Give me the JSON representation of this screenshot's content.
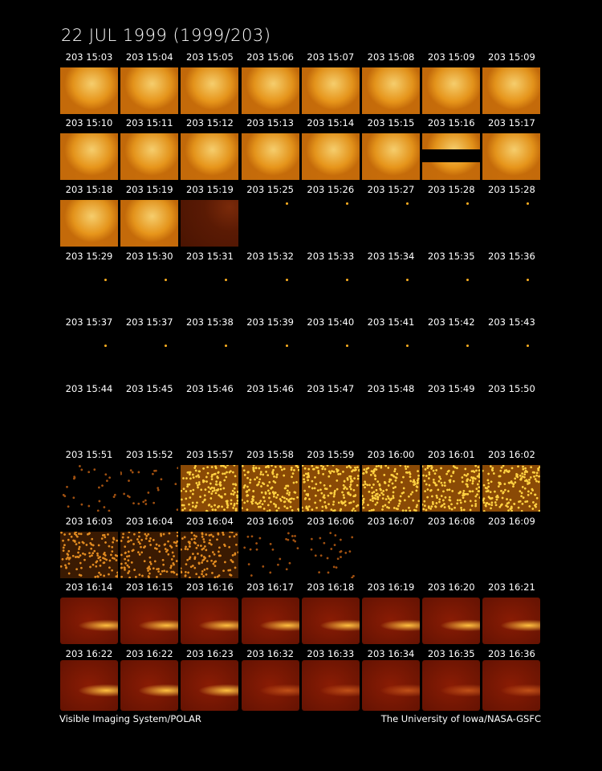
{
  "title": "22 JUL 1999  (1999/203)",
  "panels": [
    [
      "203 15:03",
      "203 15:04",
      "203 15:05",
      "203 15:06",
      "203 15:07",
      "203 15:08",
      "203 15:09",
      "203 15:09"
    ],
    [
      "203 15:10",
      "203 15:11",
      "203 15:12",
      "203 15:13",
      "203 15:14",
      "203 15:15",
      "203 15:16",
      "203 15:17"
    ],
    [
      "203 15:18",
      "203 15:19",
      "203 15:19",
      "203 15:25",
      "203 15:26",
      "203 15:27",
      "203 15:28",
      "203 15:28"
    ],
    [
      "203 15:29",
      "203 15:30",
      "203 15:31",
      "203 15:32",
      "203 15:33",
      "203 15:34",
      "203 15:35",
      "203 15:36"
    ],
    [
      "203 15:37",
      "203 15:37",
      "203 15:38",
      "203 15:39",
      "203 15:40",
      "203 15:41",
      "203 15:42",
      "203 15:43"
    ],
    [
      "203 15:44",
      "203 15:45",
      "203 15:46",
      "203 15:46",
      "203 15:47",
      "203 15:48",
      "203 15:49",
      "203 15:50"
    ],
    [
      "203 15:51",
      "203 15:52",
      "203 15:57",
      "203 15:58",
      "203 15:59",
      "203 16:00",
      "203 16:01",
      "203 16:02"
    ],
    [
      "203 16:03",
      "203 16:04",
      "203 16:04",
      "203 16:05",
      "203 16:06",
      "203 16:07",
      "203 16:08",
      "203 16:09"
    ],
    [
      "203 16:14",
      "203 16:15",
      "203 16:16",
      "203 16:17",
      "203 16:18",
      "203 16:19",
      "203 16:20",
      "203 16:21"
    ],
    [
      "203 16:22",
      "203 16:22",
      "203 16:23",
      "203 16:32",
      "203 16:33",
      "203 16:34",
      "203 16:35",
      "203 16:36"
    ]
  ],
  "footer": {
    "left": "Visible Imaging System/POLAR",
    "right": "The University of Iowa/NASA-GSFC"
  }
}
